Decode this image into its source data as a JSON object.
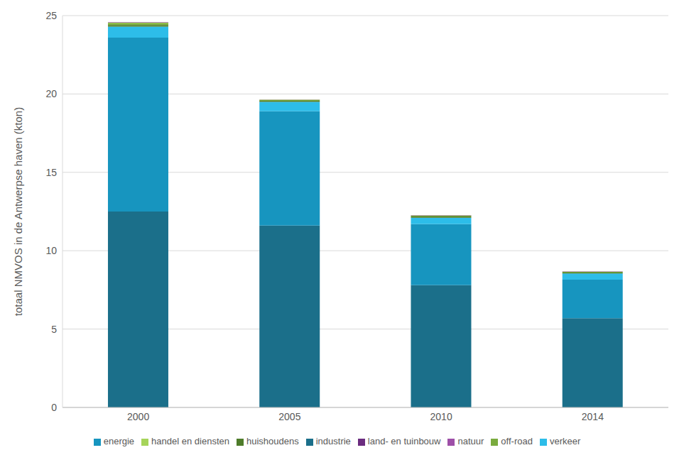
{
  "chart_data": {
    "type": "bar",
    "stacked": true,
    "y_label": "totaal NMVOS in de Antwerpse haven  (kton)",
    "categories": [
      "2000",
      "2005",
      "2010",
      "2014"
    ],
    "series": [
      {
        "name": "industrie",
        "color": "#1b6f8a",
        "values": [
          12.5,
          11.6,
          7.8,
          5.7
        ]
      },
      {
        "name": "energie",
        "color": "#1795bf",
        "values": [
          11.1,
          7.3,
          3.9,
          2.45
        ]
      },
      {
        "name": "verkeer",
        "color": "#2dbde9",
        "values": [
          0.7,
          0.6,
          0.4,
          0.4
        ]
      },
      {
        "name": "huishoudens",
        "color": "#4e7c2a",
        "values": [
          0.1,
          0.07,
          0.08,
          0.06
        ]
      },
      {
        "name": "off-road",
        "color": "#7aab3e",
        "values": [
          0.1,
          0.05,
          0.05,
          0.04
        ]
      },
      {
        "name": "handel en diensten",
        "color": "#a6d45a",
        "values": [
          0.05,
          0.02,
          0.02,
          0.01
        ]
      },
      {
        "name": "land- en tuinbouw",
        "color": "#6b2c7f",
        "values": [
          0.02,
          0.01,
          0.01,
          0.01
        ]
      },
      {
        "name": "natuur",
        "color": "#9e4fa8",
        "values": [
          0.01,
          0.01,
          0.01,
          0.01
        ]
      }
    ],
    "ylim": [
      0,
      25
    ],
    "yticks": [
      0,
      5,
      10,
      15,
      20,
      25
    ],
    "grid": true,
    "legend": "bottom"
  }
}
